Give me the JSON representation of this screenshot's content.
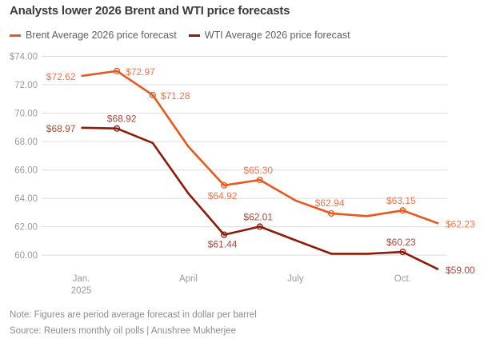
{
  "title": "Analysts lower 2026 Brent and WTI price forecasts",
  "note": "Note: Figures are period average forecast in dollar per barrel",
  "source": "Source: Reuters monthly oil polls | Anushree Mukherjee",
  "colors": {
    "background": "#ffffff",
    "title_text": "#3c3c3c",
    "legend_text": "#5f5f5f",
    "axis_text": "#9b9b9b",
    "gridline": "#dcdcdc",
    "footer_text": "#8c8c8c",
    "brent_line": "#e8581c",
    "brent_label": "#ee764e",
    "wti_line": "#8e1a08",
    "wti_label": "#a8493a"
  },
  "chart_data": {
    "type": "line",
    "title": "Analysts lower 2026 Brent and WTI price forecasts",
    "xlabel": "",
    "ylabel": "dollar per barrel",
    "ylim": [
      58.5,
      74
    ],
    "grid": "horizontal",
    "legend_position": "top-left",
    "y_ticks": [
      {
        "value": 74,
        "label": "$74.00"
      },
      {
        "value": 72,
        "label": "72.00"
      },
      {
        "value": 70,
        "label": "70.00"
      },
      {
        "value": 68,
        "label": "68.00"
      },
      {
        "value": 66,
        "label": "66.00"
      },
      {
        "value": 64,
        "label": "64.00"
      },
      {
        "value": 62,
        "label": "62.00"
      },
      {
        "value": 60,
        "label": "60.00"
      }
    ],
    "x_tick_labels": [
      {
        "label": "Jan.",
        "sub": "2025",
        "month_index": 0
      },
      {
        "label": "April",
        "month_index": 3
      },
      {
        "label": "July",
        "month_index": 6
      },
      {
        "label": "Oct.",
        "month_index": 9
      }
    ],
    "months": [
      "Jan. 2025",
      "Feb. 2025",
      "March 2025",
      "April 2025",
      "May 2025",
      "June 2025",
      "July 2025",
      "Aug. 2025",
      "Sep. 2025",
      "Oct. 2025",
      "Nov. 2025"
    ],
    "series": [
      {
        "name": "Brent Average 2026 price forecast",
        "color": "#e8581c",
        "label_color": "#ee764e",
        "points": [
          {
            "month": "Jan. 2025",
            "value": 72.62,
            "label": "$72.62",
            "anchor": "end",
            "dx": -7,
            "dy": 5,
            "marker": false
          },
          {
            "month": "Feb. 2025",
            "value": 72.97,
            "label": "$72.97",
            "anchor": "start",
            "dx": 11,
            "dy": 5,
            "marker": true
          },
          {
            "month": "March 2025",
            "value": 71.28,
            "label": "$71.28",
            "anchor": "start",
            "dx": 10,
            "dy": 5,
            "marker": true
          },
          {
            "month": "April 2025",
            "value": 67.65,
            "label": null,
            "estimated": true
          },
          {
            "month": "May 2025",
            "value": 64.92,
            "label": "$64.92",
            "anchor": "middle",
            "dx": -2,
            "dy": 17,
            "marker": true
          },
          {
            "month": "June 2025",
            "value": 65.3,
            "label": "$65.30",
            "anchor": "middle",
            "dx": -2,
            "dy": -8,
            "marker": true
          },
          {
            "month": "July 2025",
            "value": 63.85,
            "label": null,
            "estimated": true
          },
          {
            "month": "Aug. 2025",
            "value": 62.94,
            "label": "$62.94",
            "anchor": "middle",
            "dx": -2,
            "dy": -9,
            "marker": true
          },
          {
            "month": "Sep. 2025",
            "value": 62.75,
            "label": null,
            "estimated": true
          },
          {
            "month": "Oct. 2025",
            "value": 63.15,
            "label": "$63.15",
            "anchor": "middle",
            "dx": -2,
            "dy": -8,
            "marker": true
          },
          {
            "month": "Nov. 2025",
            "value": 62.23,
            "label": "$62.23",
            "anchor": "start",
            "dx": 9,
            "dy": 5,
            "marker": false
          }
        ]
      },
      {
        "name": "WTI Average 2026 price forecast",
        "color": "#8e1a08",
        "label_color": "#a8493a",
        "points": [
          {
            "month": "Jan. 2025",
            "value": 68.97,
            "label": "$68.97",
            "anchor": "end",
            "dx": -7,
            "dy": 5,
            "marker": false
          },
          {
            "month": "Feb. 2025",
            "value": 68.92,
            "label": "$68.92",
            "anchor": "middle",
            "dx": 6,
            "dy": -8,
            "marker": true
          },
          {
            "month": "March 2025",
            "value": 67.9,
            "label": null,
            "estimated": true
          },
          {
            "month": "April 2025",
            "value": 64.35,
            "label": null,
            "estimated": true
          },
          {
            "month": "May 2025",
            "value": 61.44,
            "label": "$61.44",
            "anchor": "middle",
            "dx": -2,
            "dy": 16,
            "marker": true
          },
          {
            "month": "June 2025",
            "value": 62.01,
            "label": "$62.01",
            "anchor": "middle",
            "dx": -2,
            "dy": -8,
            "marker": true
          },
          {
            "month": "July 2025",
            "value": 61.05,
            "label": null,
            "estimated": true
          },
          {
            "month": "Aug. 2025",
            "value": 60.1,
            "label": null,
            "estimated": true
          },
          {
            "month": "Sep. 2025",
            "value": 60.1,
            "label": null,
            "estimated": true
          },
          {
            "month": "Oct. 2025",
            "value": 60.23,
            "label": "$60.23",
            "anchor": "middle",
            "dx": -2,
            "dy": -8,
            "marker": true
          },
          {
            "month": "Nov. 2025",
            "value": 59.0,
            "label": "$59.00",
            "anchor": "start",
            "dx": 9,
            "dy": 5,
            "marker": false
          }
        ]
      }
    ]
  }
}
